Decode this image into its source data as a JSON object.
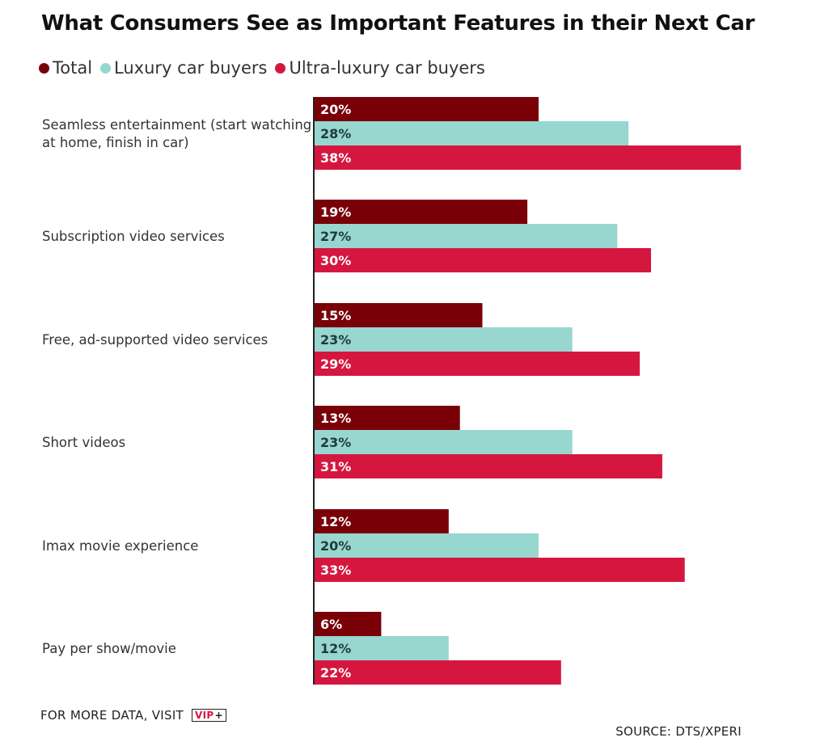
{
  "colors": {
    "total": "#7a0008",
    "luxury": "#98d6d0",
    "ultra": "#d5173f",
    "axis": "#222222"
  },
  "footer": {
    "more_data": "FOR MORE DATA, VISIT",
    "vip_text": "VIP",
    "vip_plus": "+",
    "source": "SOURCE: DTS/XPERI"
  },
  "chart_data": {
    "type": "bar",
    "orientation": "horizontal",
    "title": "What Consumers See as Important Features in their Next Car",
    "legend_position": "top-left",
    "value_format": "percent",
    "xlim": [
      0,
      40
    ],
    "grid": false,
    "categories": [
      [
        "Seamless entertainment (start watching",
        "at home, finish in car)"
      ],
      [
        "Subscription video services"
      ],
      [
        "Free, ad-supported video services"
      ],
      [
        "Short videos"
      ],
      [
        "Imax movie experience"
      ],
      [
        "Pay per show/movie"
      ]
    ],
    "series": [
      {
        "name": "Total",
        "color": "#7a0008",
        "label_color": "#ffffff",
        "values": [
          20,
          19,
          15,
          13,
          12,
          6
        ]
      },
      {
        "name": "Luxury car buyers",
        "color": "#98d6d0",
        "label_color": "#1f3a3a",
        "values": [
          28,
          27,
          23,
          23,
          20,
          12
        ]
      },
      {
        "name": "Ultra-luxury car buyers",
        "color": "#d5173f",
        "label_color": "#ffffff",
        "values": [
          38,
          30,
          29,
          31,
          33,
          22
        ]
      }
    ]
  }
}
